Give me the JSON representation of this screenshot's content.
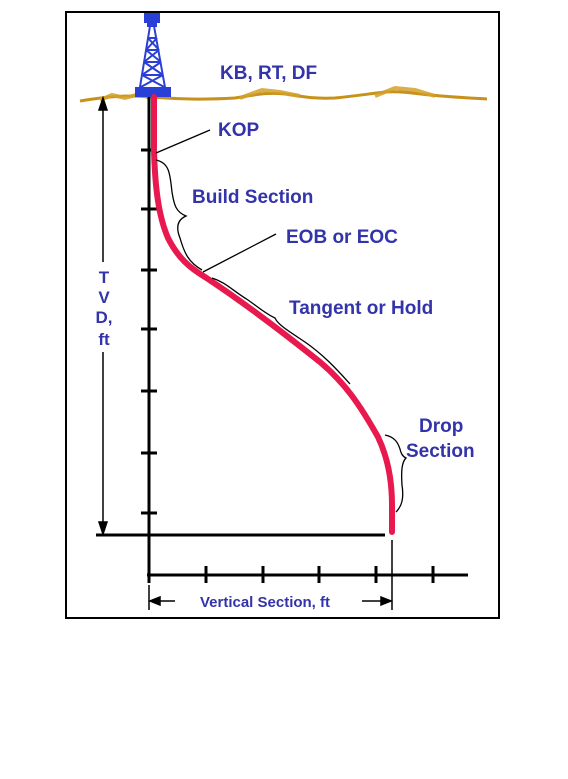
{
  "labels": {
    "surface": "KB, RT, DF",
    "kop": "KOP",
    "build": "Build Section",
    "eob": "EOB or EOC",
    "tangent": "Tangent or Hold",
    "drop_line1": "Drop",
    "drop_line2": "Section",
    "tvd_chars": [
      "T",
      "V",
      "D,",
      "ft"
    ],
    "vertical_section": "Vertical Section, ft"
  },
  "colors": {
    "well_path": "#e8194f",
    "label_text": "#3333aa",
    "rig": "#2a3fd6",
    "ground": "#d4a02a",
    "frame": "#000000"
  },
  "icons": {
    "rig": "drilling-rig-icon"
  }
}
